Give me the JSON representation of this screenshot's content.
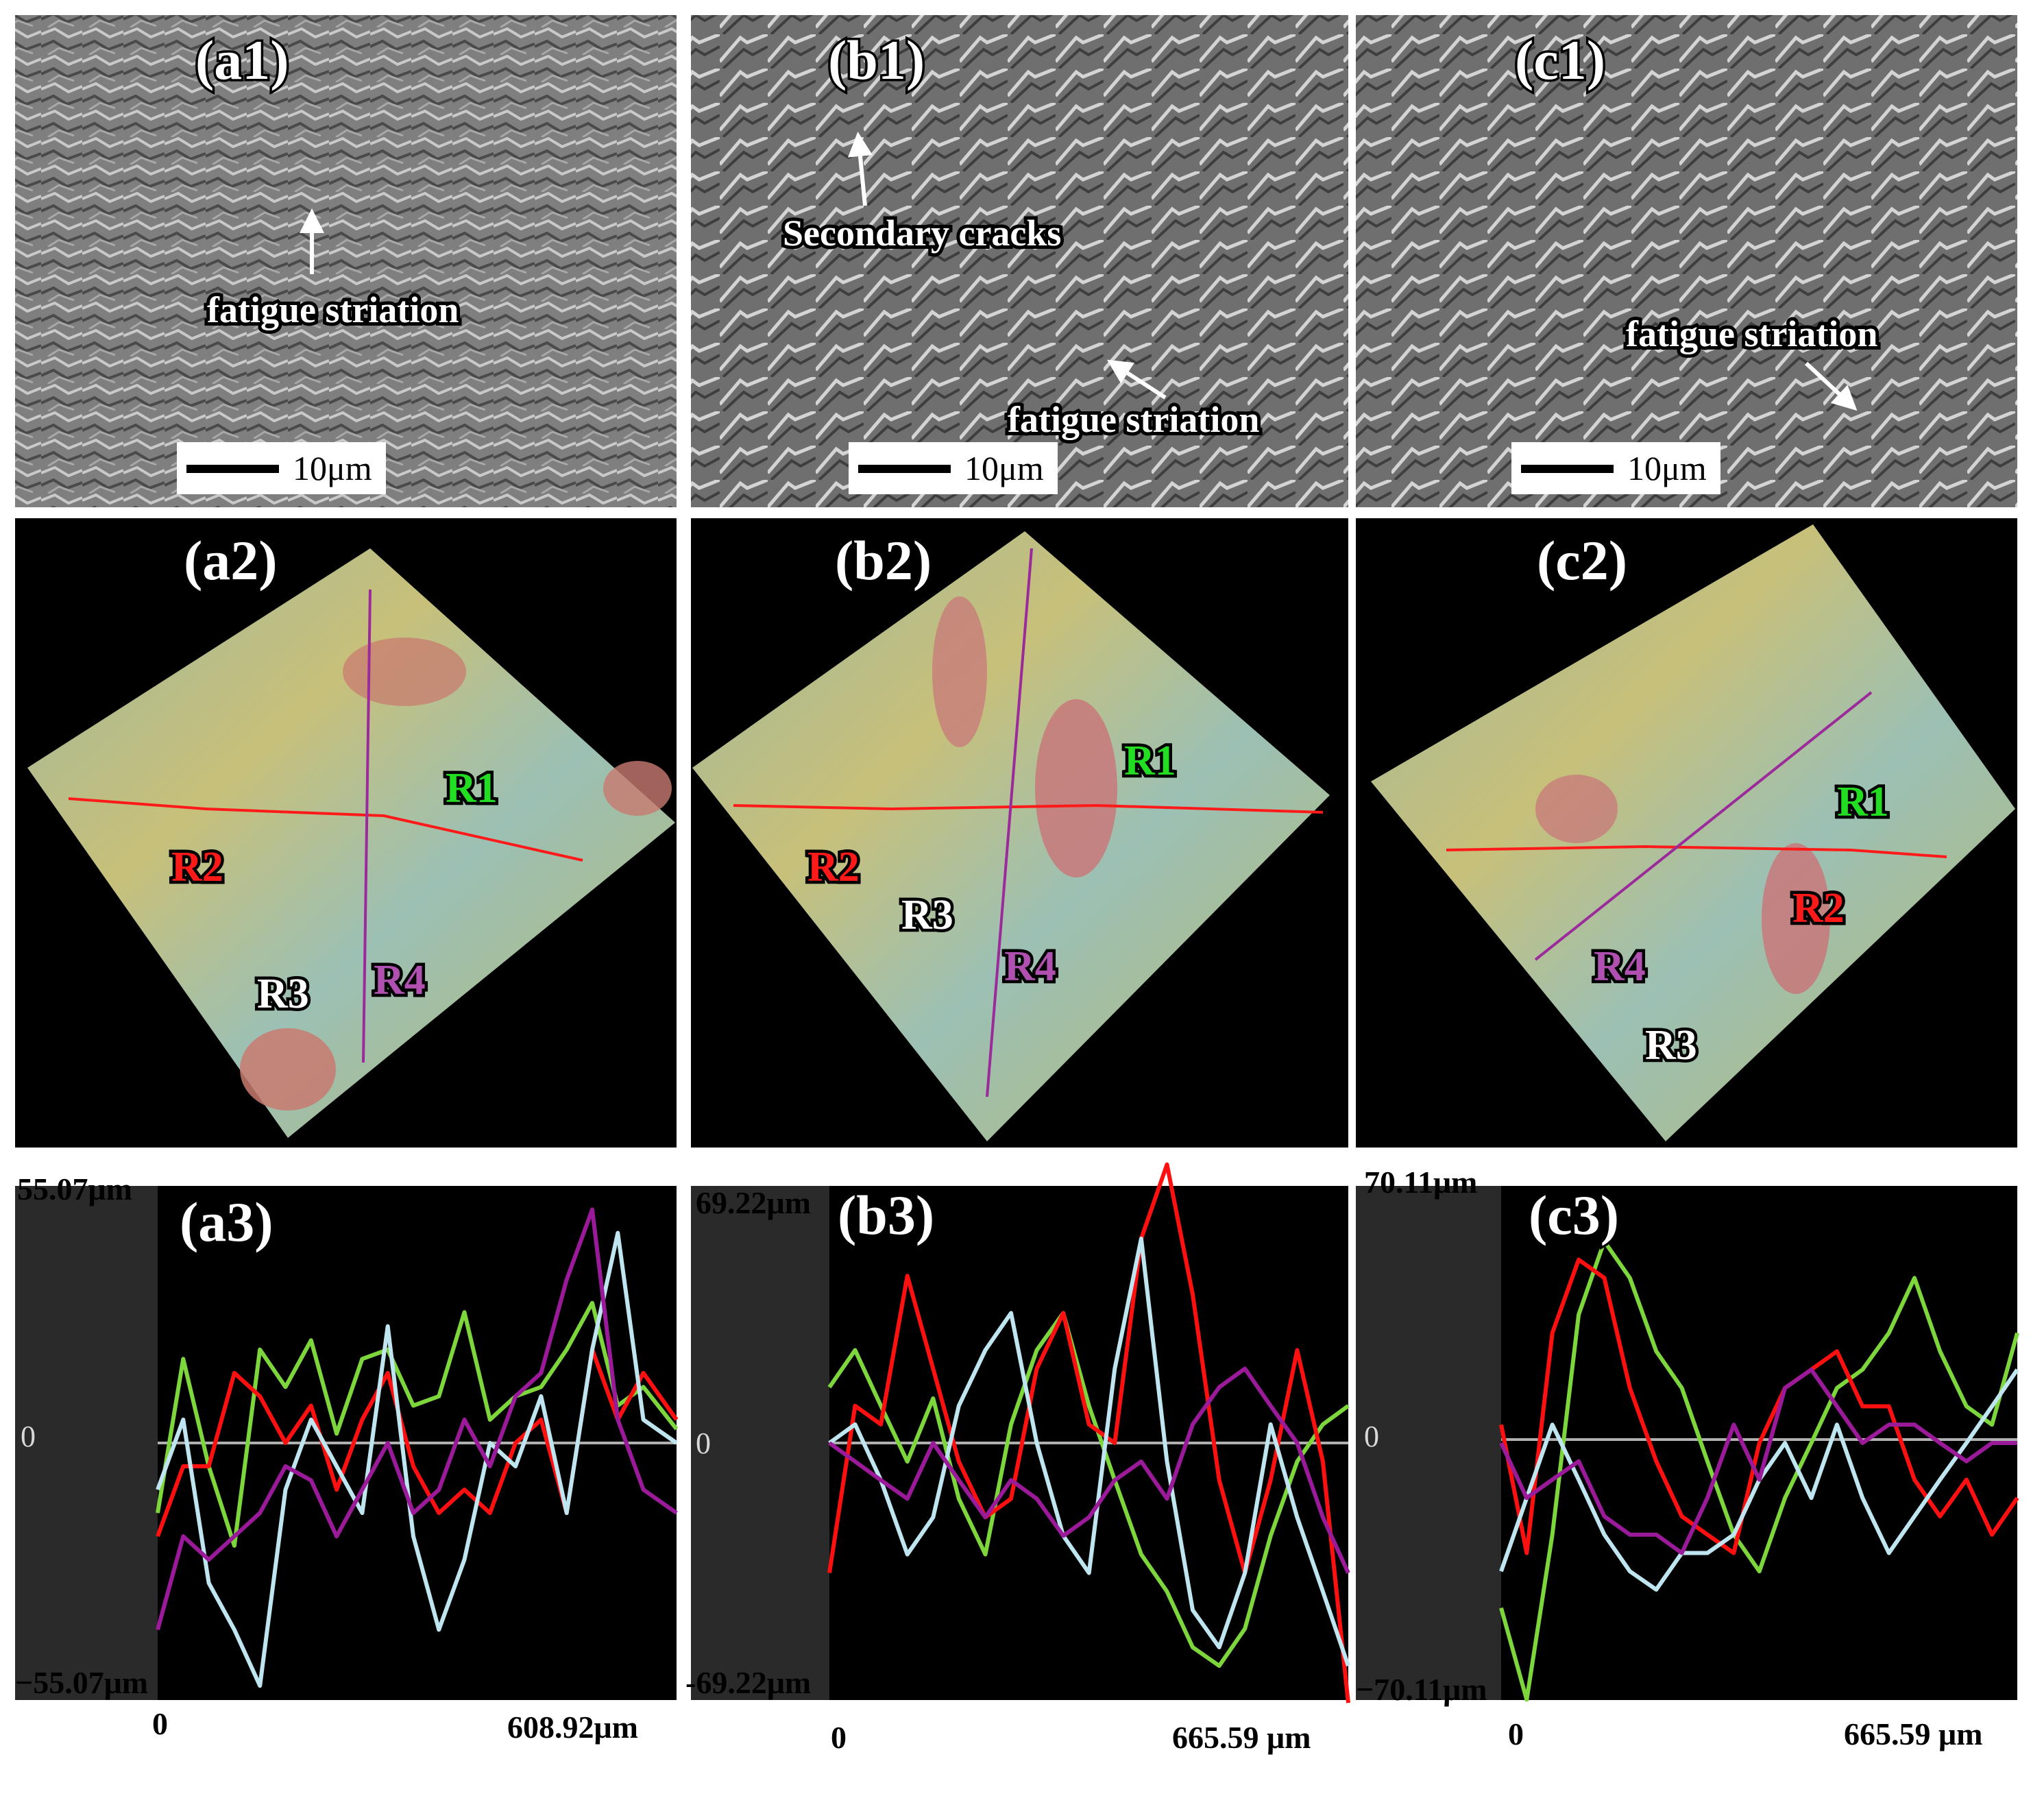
{
  "colors": {
    "R1": "#22dd22",
    "R2": "#ff1a1a",
    "R3": "#ffffff",
    "R4": "#9b2a9b",
    "profile_R1": "#7cd63c",
    "profile_R2": "#ff1010",
    "profile_R3": "#bfe6f0",
    "profile_R4": "#9a1a9a"
  },
  "row1": [
    {
      "label": "(a1)",
      "scale": "10μm",
      "annotations": [
        {
          "text": "fatigue striation"
        }
      ]
    },
    {
      "label": "(b1)",
      "scale": "10μm",
      "annotations": [
        {
          "text": "Secondary cracks"
        },
        {
          "text": "fatigue striation"
        }
      ]
    },
    {
      "label": "(c1)",
      "scale": "10μm",
      "annotations": [
        {
          "text": "fatigue striation"
        }
      ]
    }
  ],
  "row2": [
    {
      "label": "(a2)",
      "regions": [
        "R1",
        "R2",
        "R3",
        "R4"
      ]
    },
    {
      "label": "(b2)",
      "regions": [
        "R1",
        "R2",
        "R3",
        "R4"
      ]
    },
    {
      "label": "(c2)",
      "regions": [
        "R1",
        "R2",
        "R3",
        "R4"
      ]
    }
  ],
  "chart_data": [
    {
      "type": "line",
      "label": "(a3)",
      "y_max_label": "55.07μm",
      "y_min_label": "−55.07μm",
      "y_zero_label": "0",
      "x_min_label": "0",
      "x_max_label": "608.92μm",
      "xlim": [
        0,
        608.92
      ],
      "ylim": [
        -55.07,
        55.07
      ],
      "series": [
        {
          "color": "#7cd63c",
          "x": [
            0,
            30,
            60,
            90,
            120,
            150,
            180,
            210,
            240,
            270,
            300,
            330,
            360,
            390,
            420,
            450,
            480,
            510,
            540,
            570,
            608.92
          ],
          "y": [
            -15,
            18,
            -5,
            -22,
            20,
            12,
            22,
            2,
            18,
            20,
            8,
            10,
            28,
            5,
            10,
            12,
            20,
            30,
            8,
            12,
            3
          ]
        },
        {
          "color": "#ff1010",
          "x": [
            0,
            30,
            60,
            90,
            120,
            150,
            180,
            210,
            240,
            270,
            300,
            330,
            360,
            390,
            420,
            450,
            480,
            510,
            540,
            570,
            608.92
          ],
          "y": [
            -20,
            -5,
            -5,
            15,
            10,
            0,
            8,
            -10,
            5,
            15,
            -5,
            -15,
            -10,
            -15,
            0,
            5,
            -15,
            20,
            5,
            15,
            5
          ]
        },
        {
          "color": "#bfe6f0",
          "x": [
            0,
            30,
            60,
            90,
            120,
            150,
            180,
            210,
            240,
            270,
            300,
            330,
            360,
            390,
            420,
            450,
            480,
            510,
            540,
            570,
            608.92
          ],
          "y": [
            -10,
            5,
            -30,
            -40,
            -52,
            -10,
            5,
            -5,
            -15,
            25,
            -20,
            -40,
            -25,
            0,
            -5,
            10,
            -15,
            20,
            45,
            5,
            0
          ]
        },
        {
          "color": "#9a1a9a",
          "x": [
            0,
            30,
            60,
            90,
            120,
            150,
            180,
            210,
            240,
            270,
            300,
            330,
            360,
            390,
            420,
            450,
            480,
            510,
            540,
            570,
            608.92
          ],
          "y": [
            -40,
            -20,
            -25,
            -20,
            -15,
            -5,
            -8,
            -20,
            -10,
            0,
            -15,
            -10,
            5,
            -5,
            10,
            15,
            35,
            50,
            5,
            -10,
            -15
          ]
        }
      ]
    },
    {
      "type": "line",
      "label": "(b3)",
      "y_max_label": "69.22μm",
      "y_min_label": "-69.22μm",
      "y_zero_label": "0",
      "x_min_label": "0",
      "x_max_label": "665.59 μm",
      "xlim": [
        0,
        665.59
      ],
      "ylim": [
        -69.22,
        69.22
      ],
      "series": [
        {
          "color": "#7cd63c",
          "x": [
            0,
            33,
            66,
            100,
            133,
            166,
            200,
            233,
            266,
            300,
            333,
            366,
            400,
            433,
            466,
            500,
            533,
            566,
            600,
            633,
            665.59
          ],
          "y": [
            15,
            25,
            10,
            -5,
            12,
            -15,
            -30,
            5,
            25,
            35,
            10,
            -10,
            -30,
            -40,
            -55,
            -60,
            -50,
            -25,
            -5,
            5,
            10
          ]
        },
        {
          "color": "#ff1010",
          "x": [
            0,
            33,
            66,
            100,
            133,
            166,
            200,
            233,
            266,
            300,
            333,
            366,
            400,
            433,
            466,
            500,
            533,
            566,
            600,
            633,
            665.59
          ],
          "y": [
            -35,
            10,
            5,
            45,
            20,
            -5,
            -20,
            -15,
            20,
            35,
            5,
            0,
            55,
            75,
            40,
            -10,
            -35,
            -10,
            25,
            -5,
            -70
          ]
        },
        {
          "color": "#bfe6f0",
          "x": [
            0,
            33,
            66,
            100,
            133,
            166,
            200,
            233,
            266,
            300,
            333,
            366,
            400,
            433,
            466,
            500,
            533,
            566,
            600,
            633,
            665.59
          ],
          "y": [
            0,
            5,
            -10,
            -30,
            -20,
            10,
            25,
            35,
            0,
            -25,
            -35,
            20,
            55,
            -5,
            -45,
            -55,
            -35,
            5,
            -20,
            -40,
            -60
          ]
        },
        {
          "color": "#9a1a9a",
          "x": [
            0,
            33,
            66,
            100,
            133,
            166,
            200,
            233,
            266,
            300,
            333,
            366,
            400,
            433,
            466,
            500,
            533,
            566,
            600,
            633,
            665.59
          ],
          "y": [
            0,
            -5,
            -10,
            -15,
            0,
            -10,
            -20,
            -10,
            -15,
            -25,
            -20,
            -10,
            -5,
            -15,
            5,
            15,
            20,
            10,
            0,
            -20,
            -35
          ]
        }
      ]
    },
    {
      "type": "line",
      "label": "(c3)",
      "y_max_label": "70.11μm",
      "y_min_label": "−70.11μm",
      "y_zero_label": "0",
      "x_min_label": "0",
      "x_max_label": "665.59 μm",
      "xlim": [
        0,
        665.59
      ],
      "ylim": [
        -70.11,
        70.11
      ],
      "series": [
        {
          "color": "#7cd63c",
          "x": [
            0,
            33,
            66,
            100,
            133,
            166,
            200,
            233,
            266,
            300,
            333,
            366,
            400,
            433,
            466,
            500,
            533,
            566,
            600,
            633,
            665.59
          ],
          "y": [
            -45,
            -70,
            -25,
            35,
            55,
            45,
            25,
            15,
            -5,
            -25,
            -35,
            -15,
            0,
            15,
            20,
            30,
            45,
            25,
            10,
            5,
            30
          ]
        },
        {
          "color": "#ff1010",
          "x": [
            0,
            33,
            66,
            100,
            133,
            166,
            200,
            233,
            266,
            300,
            333,
            366,
            400,
            433,
            466,
            500,
            533,
            566,
            600,
            633,
            665.59
          ],
          "y": [
            5,
            -30,
            30,
            50,
            45,
            15,
            -5,
            -20,
            -25,
            -30,
            0,
            15,
            20,
            25,
            10,
            10,
            -10,
            -20,
            -10,
            -25,
            -15
          ]
        },
        {
          "color": "#bfe6f0",
          "x": [
            0,
            33,
            66,
            100,
            133,
            166,
            200,
            233,
            266,
            300,
            333,
            366,
            400,
            433,
            466,
            500,
            533,
            566,
            600,
            633,
            665.59
          ],
          "y": [
            -35,
            -15,
            5,
            -10,
            -25,
            -35,
            -40,
            -30,
            -30,
            -25,
            -10,
            0,
            -15,
            5,
            -15,
            -30,
            -20,
            -10,
            0,
            10,
            20
          ]
        },
        {
          "color": "#9a1a9a",
          "x": [
            0,
            33,
            66,
            100,
            133,
            166,
            200,
            233,
            266,
            300,
            333,
            366,
            400,
            433,
            466,
            500,
            533,
            566,
            600,
            633,
            665.59
          ],
          "y": [
            0,
            -15,
            -10,
            -5,
            -20,
            -25,
            -25,
            -30,
            -15,
            5,
            -10,
            15,
            20,
            10,
            0,
            5,
            5,
            0,
            -5,
            0,
            0
          ]
        }
      ]
    }
  ]
}
